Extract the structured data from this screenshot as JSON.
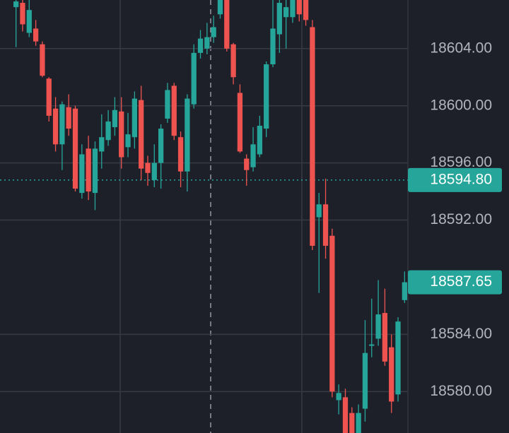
{
  "chart_data": {
    "type": "candlestick",
    "ylim": [
      18577.1,
      18607.4
    ],
    "yticks": [
      {
        "value": 18580,
        "label": "18580.00"
      },
      {
        "value": 18584,
        "label": "18584.00"
      },
      {
        "value": 18592,
        "label": "18592.00"
      },
      {
        "value": 18596,
        "label": "18596.00"
      },
      {
        "value": 18600,
        "label": "18600.00"
      },
      {
        "value": 18604,
        "label": "18604.00"
      }
    ],
    "grid": true,
    "up_color": "#26a69a",
    "down_color": "#ef5350",
    "price_markers": [
      {
        "value": 18594.8,
        "label": "18594.80",
        "color": "#26a69a",
        "line": true
      },
      {
        "value": 18587.65,
        "label": "18587.65",
        "color": "#26a69a",
        "line": false
      }
    ],
    "open": [
      18606.9,
      18607.2,
      18605.1,
      18605.4,
      18604.3,
      18601.9,
      18599.8,
      18597.3,
      18599.9,
      18599.8,
      18593.9,
      18597,
      18593.9,
      18596.8,
      18597.6,
      18598.5,
      18599.6,
      18597.1,
      18597.8,
      18600.4,
      18596,
      18594.8,
      18596,
      18599.1,
      18601.4,
      18597.8,
      18595.4,
      18600.1,
      18603.7,
      18604,
      18604.8,
      18606.4,
      18607.4,
      18604.3,
      18600.9,
      18596.3,
      18595.7,
      18596.6,
      18598.4,
      18602.9,
      18605,
      18606.2,
      18606.2,
      18607.4,
      18607.4,
      18605.5,
      18592.2,
      18593.1,
      18590.9,
      18579.4,
      18579.6,
      18578.5,
      18577.1,
      18578.8,
      18583.2,
      18583.7,
      18585.5,
      18583.1,
      18579.8,
      18586.4
    ],
    "high": [
      18607.4,
      18607.4,
      18607.4,
      18606,
      18604.5,
      18602,
      18600.6,
      18600.3,
      18600.8,
      18600,
      18597.3,
      18597.9,
      18597.5,
      18599.4,
      18599.7,
      18600.6,
      18600.6,
      18599.5,
      18601,
      18601.4,
      18596.5,
      18597.3,
      18598.7,
      18601.6,
      18601.6,
      18598.2,
      18600.8,
      18604.3,
      18605.3,
      18605.8,
      18606.3,
      18607.4,
      18607.4,
      18604.4,
      18601.5,
      18596.6,
      18598.5,
      18599.3,
      18603.1,
      18607.4,
      18607.4,
      18607.4,
      18607.4,
      18607.4,
      18607.4,
      18606,
      18593.9,
      18594.9,
      18591.4,
      18580.5,
      18580.2,
      18578.9,
      18579.1,
      18585,
      18586.5,
      18587.8,
      18587.2,
      18584,
      18585.2,
      18588.4
    ],
    "low": [
      18604.1,
      18605.2,
      18604.8,
      18604.2,
      18602,
      18598.9,
      18596.8,
      18595.5,
      18597.9,
      18594,
      18593.5,
      18593.4,
      18592.7,
      18595.6,
      18597.2,
      18597.9,
      18595.6,
      18596.4,
      18597,
      18594.8,
      18594.4,
      18594.3,
      18594.2,
      18598.8,
      18597.6,
      18594.3,
      18594,
      18599.8,
      18603.3,
      18603.6,
      18604.4,
      18606.1,
      18603.8,
      18601.5,
      18596.7,
      18594.4,
      18595.4,
      18596.4,
      18597.8,
      18602.7,
      18603.7,
      18604,
      18605.8,
      18605.9,
      18605.6,
      18589.9,
      18586.9,
      18589.3,
      18579.6,
      18578.4,
      18577.1,
      18577.1,
      18577.1,
      18577.9,
      18582.4,
      18583.2,
      18581.8,
      18578.5,
      18579.3,
      18586.2
    ],
    "close": [
      18607.3,
      18605.7,
      18606.7,
      18604.5,
      18602.1,
      18599.3,
      18597.3,
      18600.1,
      18598.4,
      18594.2,
      18596.6,
      18594,
      18597,
      18597.8,
      18598.9,
      18599.7,
      18596.4,
      18598,
      18600.5,
      18595.6,
      18595.3,
      18596,
      18598.4,
      18601.1,
      18597.9,
      18595.4,
      18600.5,
      18603.7,
      18604.7,
      18604.8,
      18605.5,
      18607.4,
      18604,
      18602,
      18596.8,
      18595.5,
      18597.3,
      18598.6,
      18602.9,
      18605.4,
      18607.2,
      18606.9,
      18607.4,
      18606.4,
      18606,
      18590.2,
      18593.1,
      18590.2,
      18580,
      18579.9,
      18577.1,
      18577.1,
      18578.5,
      18582.7,
      18583.3,
      18585.4,
      18582.1,
      18579.3,
      18584.9,
      18587.65
    ]
  }
}
